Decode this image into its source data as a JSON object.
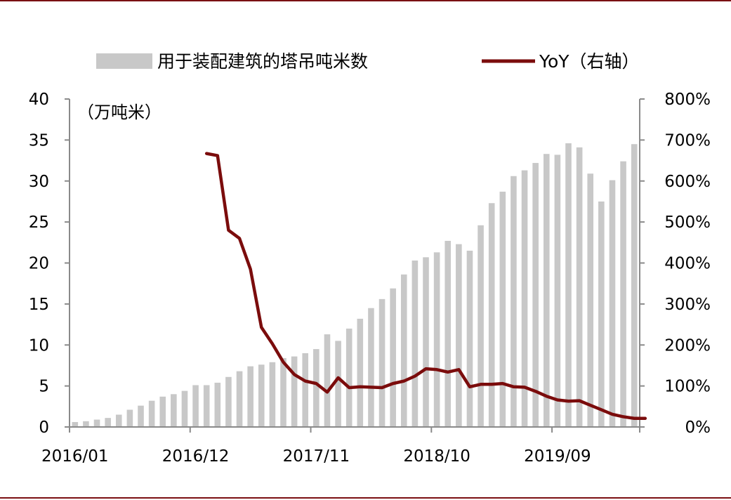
{
  "chart_data": {
    "type": "bar+line",
    "title": "",
    "x_tick_labels": [
      "2016/01",
      "2016/12",
      "2017/11",
      "2018/10",
      "2019/09"
    ],
    "x_tick_indices": [
      0,
      11,
      22,
      33,
      44
    ],
    "left_axis": {
      "unit_label": "（万吨米）",
      "ylim": [
        0,
        40
      ],
      "ticks": [
        0,
        5,
        10,
        15,
        20,
        25,
        30,
        35,
        40
      ],
      "tick_labels": [
        "0",
        "5",
        "10",
        "15",
        "20",
        "25",
        "30",
        "35",
        "40"
      ]
    },
    "right_axis": {
      "ylim": [
        0,
        800
      ],
      "ticks": [
        0,
        100,
        200,
        300,
        400,
        500,
        600,
        700,
        800
      ],
      "tick_labels": [
        "0%",
        "100%",
        "200%",
        "300%",
        "400%",
        "500%",
        "600%",
        "700%",
        "800%"
      ]
    },
    "series": [
      {
        "name": "用于装配建筑的塔吊吨米数",
        "type": "bar",
        "axis": "left",
        "color": "#c8c8c8",
        "values": [
          0.6,
          0.7,
          0.9,
          1.1,
          1.5,
          2.1,
          2.6,
          3.2,
          3.7,
          4.0,
          4.4,
          5.1,
          5.1,
          5.4,
          6.1,
          6.8,
          7.4,
          7.6,
          7.9,
          8.4,
          8.6,
          9.0,
          9.5,
          11.3,
          10.5,
          12.0,
          13.2,
          14.5,
          15.6,
          16.9,
          18.6,
          20.3,
          20.7,
          21.3,
          22.7,
          22.3,
          21.5,
          24.6,
          27.3,
          28.7,
          30.6,
          31.3,
          32.2,
          33.3,
          33.2,
          34.6,
          34.1,
          30.9,
          27.5,
          30.1,
          32.4,
          34.5
        ]
      },
      {
        "name": "YoY（右轴）",
        "type": "line",
        "axis": "right",
        "color": "#7b0c0c",
        "start_index": 12,
        "values": [
          667,
          662,
          480,
          460,
          385,
          243,
          203,
          158,
          128,
          112,
          106,
          85,
          120,
          96,
          98,
          97,
          96,
          106,
          112,
          124,
          142,
          140,
          134,
          140,
          98,
          104,
          104,
          106,
          98,
          97,
          87,
          75,
          66,
          63,
          64,
          53,
          42,
          31,
          25,
          21,
          21
        ]
      }
    ]
  }
}
